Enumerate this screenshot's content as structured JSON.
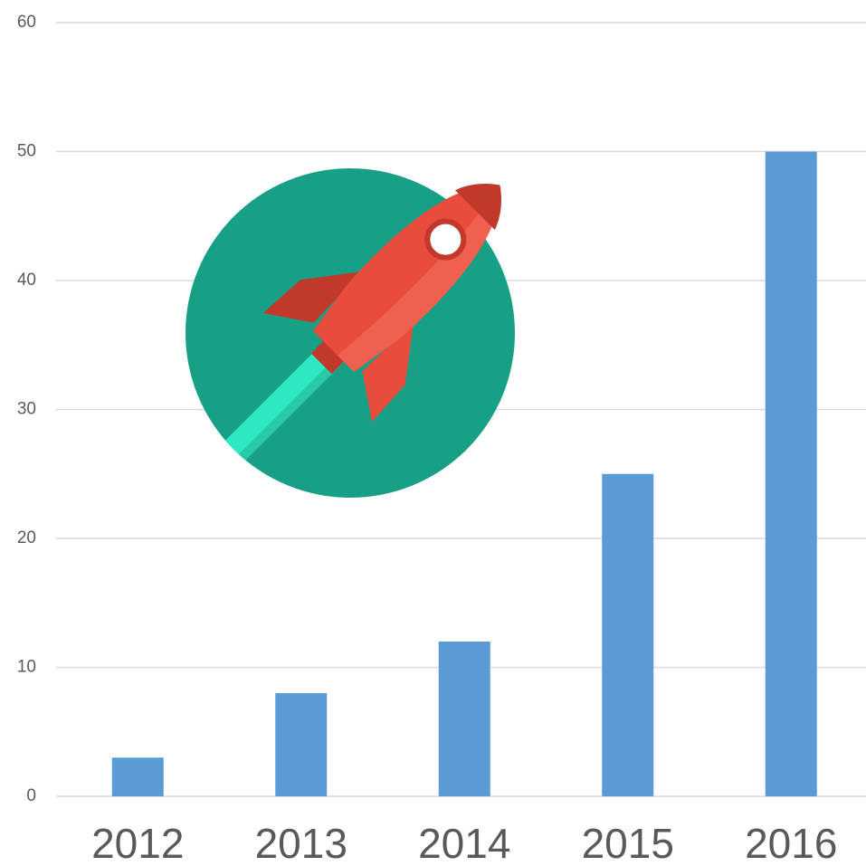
{
  "chart_data": {
    "type": "bar",
    "categories": [
      "2012",
      "2013",
      "2014",
      "2015",
      "2016"
    ],
    "values": [
      3,
      8,
      12,
      25,
      50
    ],
    "color": "#5b9bd5",
    "ylim": [
      0,
      60
    ],
    "yticks": [
      0,
      10,
      20,
      30,
      40,
      50,
      60
    ],
    "grid": true
  }
}
